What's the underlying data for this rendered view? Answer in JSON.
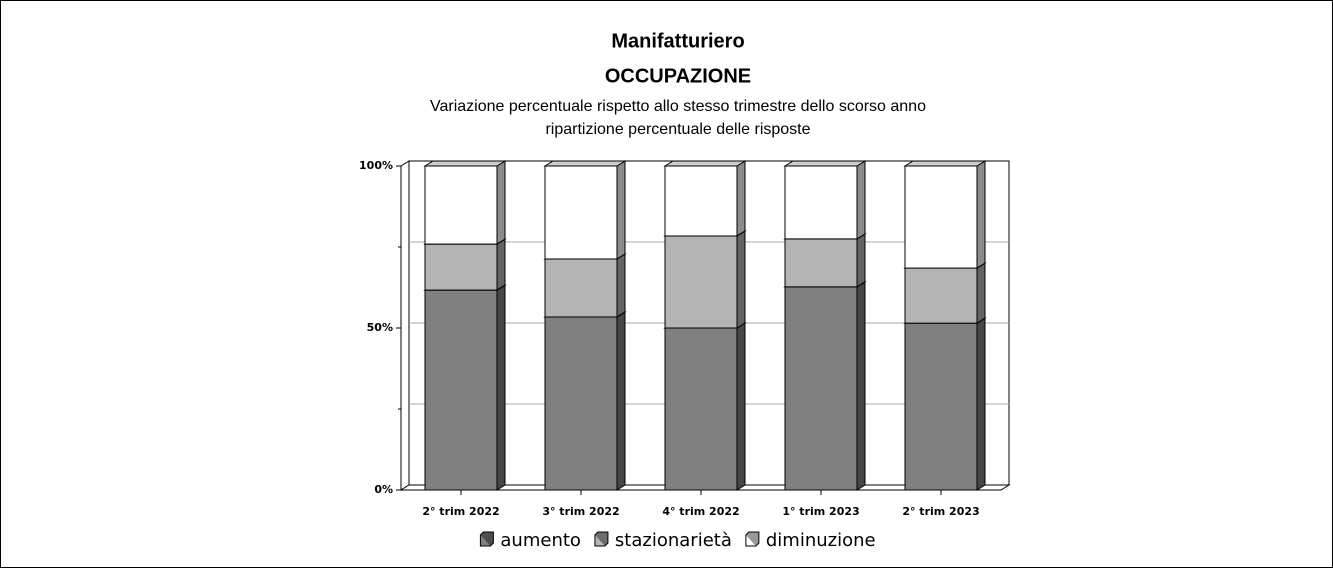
{
  "chart_data": {
    "type": "stacked_bar_3d",
    "title": "Manifatturiero",
    "subtitle": "OCCUPAZIONE",
    "notes": [
      "Variazione percentuale rispetto allo stesso trimestre dello scorso anno",
      "ripartizione percentuale delle risposte"
    ],
    "categories": [
      "2° trim 2022",
      "3° trim 2022",
      "4° trim 2022",
      "1° trim 2023",
      "2° trim 2023"
    ],
    "series": [
      {
        "name": "aumento",
        "color": "#808080",
        "values": [
          61.7,
          53.4,
          50.0,
          62.7,
          51.5
        ]
      },
      {
        "name": "stazionarietà",
        "color": "#b4b4b4",
        "values": [
          14.2,
          17.9,
          28.4,
          14.8,
          17.0
        ]
      },
      {
        "name": "diminuzione",
        "color": "#ffffff",
        "values": [
          24.1,
          28.7,
          21.6,
          22.5,
          31.5
        ]
      }
    ],
    "ylim": [
      0,
      100
    ],
    "yticks": [
      {
        "value": 0,
        "label": "0%"
      },
      {
        "value": 50,
        "label": "50%"
      },
      {
        "value": 100,
        "label": "100%"
      }
    ],
    "minor_yticks": [
      25,
      75
    ],
    "grid": true,
    "legend": "bottom"
  }
}
